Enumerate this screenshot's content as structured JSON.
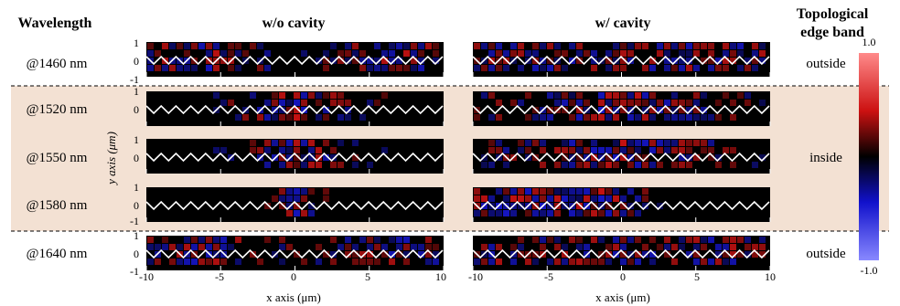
{
  "headers": {
    "wavelength": "Wavelength",
    "without_cavity": "w/o cavity",
    "with_cavity": "w/ cavity",
    "band_line1": "Topological",
    "band_line2": "edge band"
  },
  "rows": [
    {
      "wavelength": "@1460 nm",
      "band": "outside",
      "highlight": false
    },
    {
      "wavelength": "@1520 nm",
      "band": "",
      "highlight": true
    },
    {
      "wavelength": "@1550 nm",
      "band": "inside",
      "highlight": true
    },
    {
      "wavelength": "@1580 nm",
      "band": "",
      "highlight": true
    },
    {
      "wavelength": "@1640 nm",
      "band": "outside",
      "highlight": false
    }
  ],
  "axes": {
    "ylabel": "y axis (μm)",
    "xlabel": "x axis (μm)",
    "x_ticks": [
      "-10",
      "-5",
      "0",
      "5",
      "10"
    ],
    "y_ticks": [
      "1",
      "0",
      "-1"
    ]
  },
  "colorbar": {
    "max": "1.0",
    "min": "-1.0",
    "top_color": "#ee3333",
    "mid_color": "#000000",
    "bottom_color": "#6666ff"
  },
  "highlight_color": "#f3e1d3"
}
